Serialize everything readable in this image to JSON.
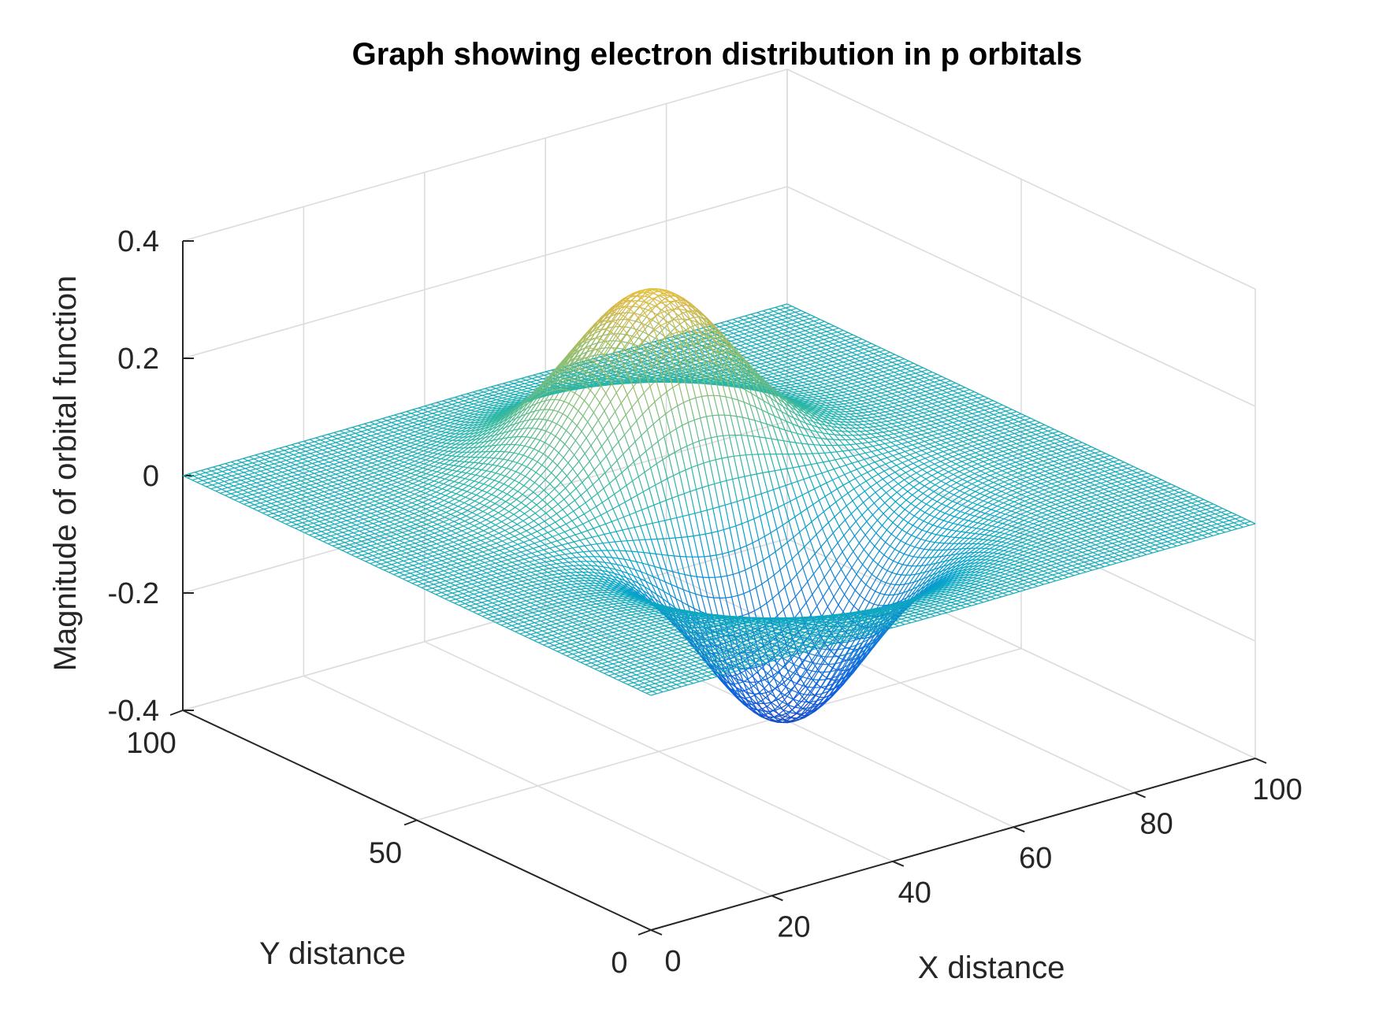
{
  "chart_data": {
    "type": "surface",
    "style": "3d-mesh",
    "colormap": "parula",
    "title": "Graph showing electron distribution in p orbitals",
    "xlabel": "X distance",
    "ylabel": "Y distance",
    "zlabel": "Magnitude of orbital function",
    "xlim": [
      0,
      100
    ],
    "ylim": [
      0,
      100
    ],
    "zlim": [
      -0.4,
      0.4
    ],
    "x_ticks": [
      "0",
      "20",
      "40",
      "60",
      "80",
      "100"
    ],
    "x_tick_values": [
      0,
      20,
      40,
      60,
      80,
      100
    ],
    "y_ticks": [
      "0",
      "50",
      "100"
    ],
    "y_tick_values": [
      0,
      50,
      100
    ],
    "z_ticks": [
      "-0.4",
      "-0.2",
      "0",
      "0.2",
      "0.4"
    ],
    "z_tick_values": [
      -0.4,
      -0.2,
      0,
      0.2,
      0.4
    ],
    "grid": true,
    "grid_resolution": 101,
    "surface_peaks": [
      {
        "label": "maximum",
        "x": 50,
        "y": 62,
        "z": 0.34
      },
      {
        "label": "minimum",
        "x": 50,
        "y": 38,
        "z": -0.36
      }
    ],
    "surface_width": 12
  }
}
